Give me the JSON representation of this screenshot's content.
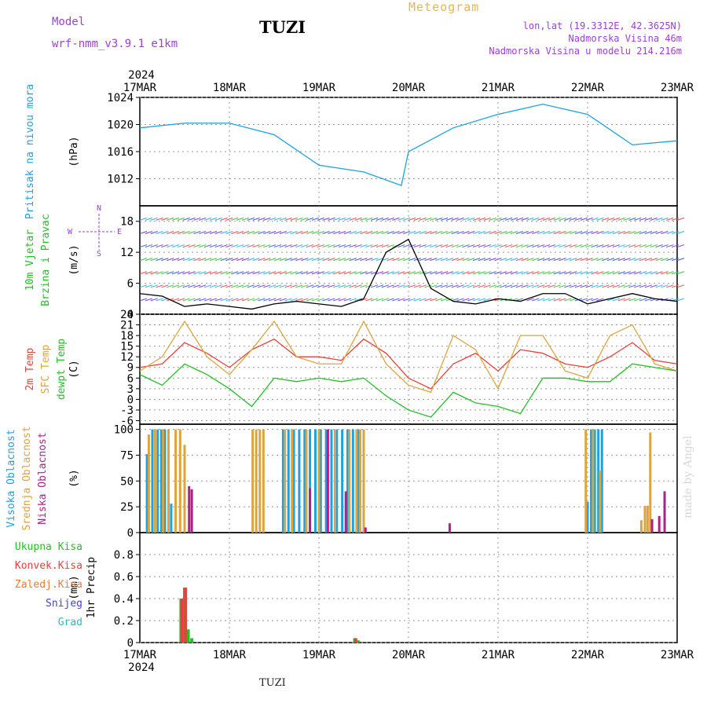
{
  "header": {
    "station": "TUZI",
    "heading": "Meteogram",
    "model_label": "Model",
    "model_name": "wrf-nmm_v3.9.1  e1km",
    "location": "lon,lat (19.3312E, 42.3625N)",
    "elevation": "Nadmorska Visina 46m",
    "model_elevation": "Nadmorska Visina u modelu 214.216m",
    "footer_station": "TUZI",
    "watermark": "made by Angel"
  },
  "time_axis": {
    "year": "2024",
    "labels": [
      "17MAR",
      "18MAR",
      "19MAR",
      "20MAR",
      "21MAR",
      "22MAR",
      "23MAR"
    ]
  },
  "colors": {
    "pressure": "#1aa3e0",
    "temp2m": "#e8403c",
    "sfc_temp": "#dda43c",
    "dewpoint": "#22c025",
    "high_cloud": "#1aa3e0",
    "mid_cloud": "#dda43c",
    "low_cloud": "#b0208a",
    "total_precip": "#22c025",
    "conv_precip": "#e8403c",
    "freezing": "#f07a30",
    "snow": "#4040e0",
    "hail": "#20c0c0",
    "wind_label": "#22c025",
    "compass": "#9b3fd6"
  },
  "chart_data": [
    {
      "type": "line",
      "ylabel_title": "Pritisak na nivou mora",
      "ylabel_unit": "(hPa)",
      "ylim": [
        1008,
        1024
      ],
      "yticks": [
        "1012",
        "1016",
        "1020",
        "1024"
      ],
      "x": [
        0,
        0.5,
        1,
        1.5,
        2,
        2.5,
        2.92,
        3,
        3.5,
        4,
        4.5,
        5,
        5.5,
        6
      ],
      "series": [
        {
          "values": [
            1019.5,
            1020.2,
            1020.2,
            1018.5,
            1014,
            1013,
            1011,
            1016,
            1019.5,
            1021.5,
            1023,
            1021.5,
            1017,
            1017.6
          ]
        }
      ]
    },
    {
      "type": "line",
      "ylabel_title": "10m Vjetar",
      "ylabel_title2": "Brzina i Pravac",
      "ylabel_unit": "(m/s)",
      "compass": {
        "n": "N",
        "s": "S",
        "e": "E",
        "w": "W"
      },
      "ylim": [
        0,
        21
      ],
      "yticks": [
        "0",
        "6",
        "12",
        "18"
      ],
      "x": [
        0,
        0.25,
        0.5,
        0.75,
        1,
        1.25,
        1.5,
        1.75,
        2,
        2.25,
        2.5,
        2.75,
        3,
        3.25,
        3.5,
        3.75,
        4,
        4.25,
        4.5,
        4.75,
        5,
        5.25,
        5.5,
        5.75,
        6
      ],
      "series": [
        {
          "values": [
            4,
            3.5,
            1.5,
            2,
            1.5,
            1,
            2,
            2.5,
            2,
            1.5,
            3,
            12,
            14.5,
            5,
            2.5,
            2,
            3,
            2.5,
            4,
            4,
            2,
            3,
            4,
            3,
            2.5
          ]
        }
      ]
    },
    {
      "type": "line",
      "ylabel_title": "2m Temp",
      "ylabel_title2": "SFC Temp",
      "ylabel_title3": "dewpt Temp",
      "ylabel_unit": "(C)",
      "ylim": [
        -7,
        24
      ],
      "yticks": [
        "-6",
        "-3",
        "0",
        "3",
        "6",
        "9",
        "12",
        "15",
        "18",
        "21",
        "24"
      ],
      "x": [
        0,
        0.25,
        0.5,
        0.75,
        1,
        1.25,
        1.5,
        1.75,
        2,
        2.25,
        2.5,
        2.75,
        3,
        3.25,
        3.5,
        3.75,
        4,
        4.25,
        4.5,
        4.75,
        5,
        5.25,
        5.5,
        5.75,
        6
      ],
      "series": [
        {
          "name": "2m Temp",
          "values": [
            9,
            10,
            16,
            13,
            9,
            14,
            17,
            12,
            12,
            11,
            17,
            13,
            6,
            3,
            10,
            13,
            8,
            14,
            13,
            10,
            9,
            12,
            16,
            11,
            10
          ]
        },
        {
          "name": "SFC Temp",
          "values": [
            8,
            12,
            22,
            12,
            7,
            14,
            22,
            12,
            10,
            10,
            22,
            10,
            4,
            2,
            18,
            14,
            3,
            18,
            18,
            8,
            6,
            18,
            21,
            10,
            8
          ]
        },
        {
          "name": "dewpt Temp",
          "values": [
            7,
            4,
            10,
            7,
            3,
            -2,
            6,
            5,
            6,
            5,
            6,
            1,
            -3,
            -5,
            2,
            -1,
            -2,
            -4,
            6,
            6,
            5,
            5,
            10,
            9,
            8
          ]
        }
      ]
    },
    {
      "type": "bar",
      "ylabel_title": "Visoka Oblacnost",
      "ylabel_title2": "Srednja Oblacnost",
      "ylabel_title3": "Niska Oblacnost",
      "ylabel_unit": "(%)",
      "ylim": [
        0,
        105
      ],
      "yticks": [
        "0",
        "25",
        "50",
        "75",
        "100"
      ],
      "series": [
        {
          "name": "Visoka Oblacnost",
          "x": [
            0.08,
            0.14,
            0.2,
            0.24,
            0.28,
            0.35,
            1.6,
            1.66,
            1.72,
            1.78,
            1.84,
            1.9,
            1.96,
            2.02,
            2.08,
            2.14,
            2.2,
            2.26,
            2.32,
            2.38,
            2.44,
            5.0,
            5.04,
            5.08,
            5.12,
            5.16
          ],
          "values": [
            76,
            100,
            100,
            100,
            100,
            28,
            100,
            100,
            100,
            100,
            100,
            100,
            100,
            100,
            100,
            100,
            100,
            100,
            100,
            100,
            100,
            30,
            100,
            100,
            100,
            100
          ]
        },
        {
          "name": "Srednja Oblacnost",
          "x": [
            0.1,
            0.17,
            0.26,
            0.32,
            0.4,
            0.45,
            0.5,
            1.26,
            1.3,
            1.34,
            1.38,
            1.62,
            1.7,
            1.86,
            2.0,
            2.18,
            2.34,
            2.42,
            2.46,
            2.5,
            4.98,
            5.06,
            5.14,
            5.6,
            5.64,
            5.67,
            5.7
          ],
          "values": [
            95,
            100,
            100,
            100,
            100,
            100,
            85,
            100,
            100,
            100,
            100,
            100,
            100,
            100,
            100,
            100,
            100,
            100,
            100,
            100,
            100,
            100,
            60,
            12,
            26,
            26,
            97
          ]
        },
        {
          "name": "Niska Oblacnost",
          "x": [
            0.55,
            0.58,
            1.9,
            2.1,
            2.3,
            2.52,
            3.46,
            5.72,
            5.8,
            5.86
          ],
          "values": [
            45,
            42,
            43,
            100,
            40,
            5,
            9,
            13,
            16,
            40
          ]
        }
      ]
    },
    {
      "type": "bar",
      "ylabel_title": "1hr Precip",
      "ylabel_unit": "(mm)",
      "ylim": [
        0,
        1
      ],
      "yticks": [
        "0",
        "0.2",
        "0.4",
        "0.6",
        "0.8"
      ],
      "legend": [
        "Ukupna Kisa",
        "Konvek.Kisa",
        "Zaledj.Kisa",
        "Snijeg",
        "Grad"
      ],
      "series": [
        {
          "name": "Ukupna Kisa",
          "x": [
            0.46,
            0.5,
            0.54,
            0.58,
            2.4,
            2.44
          ],
          "values": [
            0.4,
            0.5,
            0.12,
            0.04,
            0.04,
            0.02
          ]
        },
        {
          "name": "Konvek.Kisa",
          "x": [
            0.47,
            0.51,
            2.41
          ],
          "values": [
            0.4,
            0.5,
            0.04
          ]
        }
      ]
    }
  ]
}
